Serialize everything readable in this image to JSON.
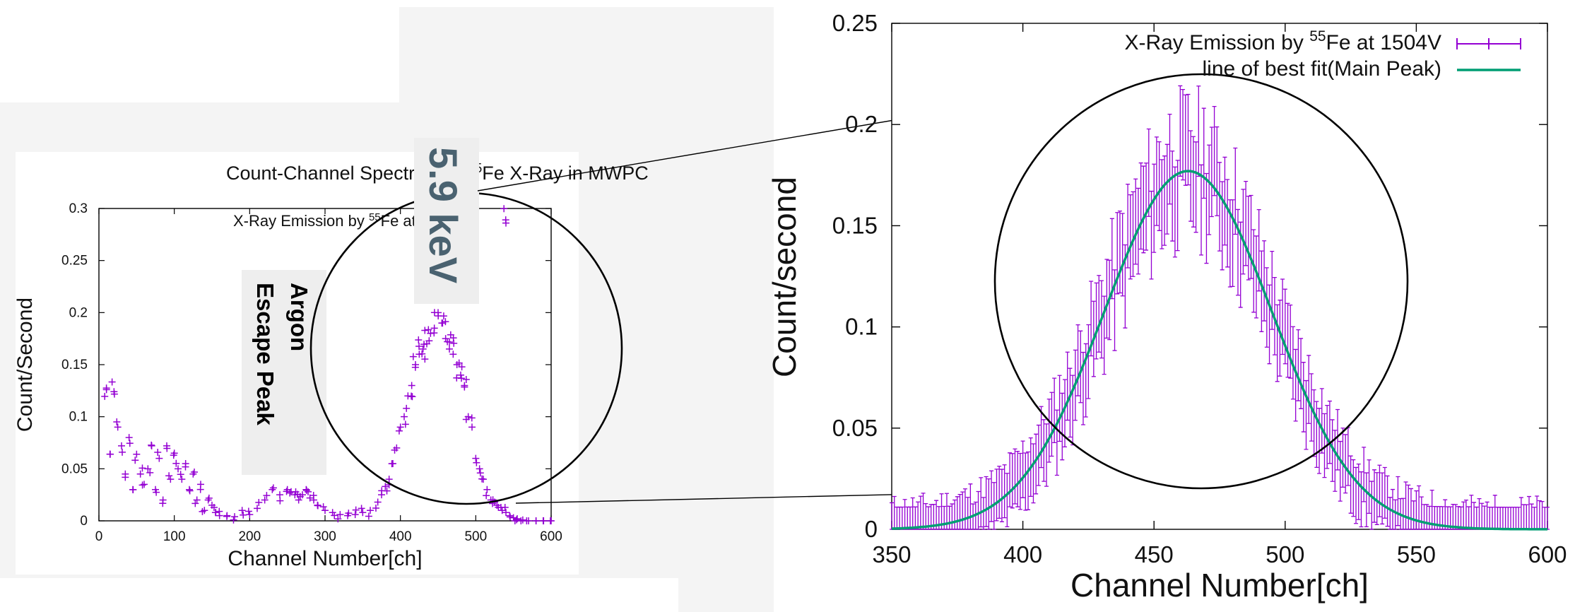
{
  "colors": {
    "data": "#9400D3",
    "fit": "#009E73",
    "annotation_text": "#4a6270",
    "panel_bg": "#f4f4f4"
  },
  "chart_data": [
    {
      "type": "scatter",
      "title": "Count-Channel Spectrum of ",
      "title_sup": "55",
      "title_suffix": "Fe X-Ray in MWPC",
      "xlabel": "Channel Number[ch]",
      "ylabel": "Count/Second",
      "xlim": [
        0,
        600
      ],
      "ylim": [
        0,
        0.3
      ],
      "xticks": [
        0,
        100,
        200,
        300,
        400,
        500,
        600
      ],
      "yticks": [
        0,
        0.05,
        0.1,
        0.15,
        0.2,
        0.25,
        0.3
      ],
      "legend": {
        "text": "X-Ray Emission by ",
        "sup": "55",
        "suffix": "Fe at",
        "position": "top-center"
      },
      "series": [
        {
          "marker": "+",
          "x": [
            10,
            15,
            20,
            25,
            30,
            35,
            40,
            45,
            50,
            55,
            60,
            65,
            70,
            75,
            80,
            85,
            90,
            95,
            100,
            105,
            110,
            115,
            120,
            125,
            130,
            135,
            140,
            145,
            150,
            155,
            160,
            170,
            180,
            190,
            200,
            210,
            220,
            230,
            240,
            250,
            255,
            260,
            265,
            270,
            275,
            280,
            285,
            290,
            300,
            310,
            320,
            330,
            340,
            350,
            360,
            370,
            375,
            380,
            385,
            390,
            395,
            400,
            405,
            410,
            415,
            420,
            425,
            430,
            435,
            440,
            445,
            450,
            455,
            460,
            465,
            470,
            475,
            480,
            485,
            490,
            495,
            500,
            505,
            510,
            515,
            520,
            525,
            530,
            535,
            540,
            545,
            550,
            555,
            560,
            570,
            580,
            590,
            600
          ],
          "y": [
            0.126,
            0.064,
            0.124,
            0.09,
            0.072,
            0.045,
            0.08,
            0.03,
            0.064,
            0.045,
            0.035,
            0.05,
            0.072,
            0.03,
            0.06,
            0.02,
            0.072,
            0.04,
            0.065,
            0.05,
            0.04,
            0.055,
            0.03,
            0.045,
            0.02,
            0.035,
            0.01,
            0.02,
            0.015,
            0.008,
            0.005,
            0.005,
            0.004,
            0.01,
            0.006,
            0.012,
            0.02,
            0.03,
            0.025,
            0.03,
            0.028,
            0.025,
            0.02,
            0.025,
            0.03,
            0.022,
            0.02,
            0.015,
            0.01,
            0.008,
            0.006,
            0.005,
            0.006,
            0.008,
            0.01,
            0.018,
            0.025,
            0.033,
            0.04,
            0.055,
            0.07,
            0.09,
            0.1,
            0.12,
            0.13,
            0.15,
            0.16,
            0.165,
            0.17,
            0.18,
            0.185,
            0.2,
            0.19,
            0.175,
            0.165,
            0.16,
            0.15,
            0.14,
            0.13,
            0.1,
            0.09,
            0.06,
            0.05,
            0.04,
            0.03,
            0.02,
            0.018,
            0.013,
            0.01,
            0.008,
            0.005,
            0.003,
            0.002,
            0.0,
            0.0,
            0.0,
            0.0,
            0.0
          ],
          "outliers": [
            {
              "x": 540,
              "y": 0.286
            }
          ]
        }
      ],
      "annotations": [
        {
          "text_lines": [
            "Argon",
            "Escape Peak"
          ],
          "orientation": "rotated-90-cw"
        },
        {
          "text": "5.9 keV",
          "orientation": "rotated-90-cw"
        }
      ],
      "highlight_circle": "around main peak (channels ~300–560)"
    },
    {
      "type": "scatter",
      "title": "",
      "xlabel": "Channel Number[ch]",
      "ylabel": "Count/second",
      "xlim": [
        350,
        600
      ],
      "ylim": [
        0,
        0.25
      ],
      "xticks": [
        350,
        400,
        450,
        500,
        550,
        600
      ],
      "yticks": [
        0,
        0.05,
        0.1,
        0.15,
        0.2,
        0.25
      ],
      "legend_position": "top-right",
      "legend": [
        {
          "text": "X-Ray Emission by ",
          "sup": "55",
          "suffix": "Fe at 1504V",
          "style": "errorbar"
        },
        {
          "text": "line of best fit(Main Peak)",
          "style": "line"
        }
      ],
      "series": [
        {
          "name": "X-Ray Emission by 55Fe at 1504V",
          "type": "errorbar",
          "x_range": [
            350,
            600
          ],
          "step": 1,
          "error": 0.022,
          "peak": 0.178,
          "mean": 463,
          "sigma": 32
        },
        {
          "name": "line of best fit(Main Peak)",
          "type": "line",
          "function": "gaussian",
          "amplitude": 0.177,
          "mean": 463,
          "sigma": 32
        }
      ],
      "highlight_circle": "around main peak"
    }
  ],
  "fit_curve": {
    "amplitude": 0.177,
    "mean": 463,
    "sigma": 32,
    "sample_x": [
      350,
      360,
      370,
      380,
      390,
      400,
      410,
      420,
      430,
      440,
      450,
      460,
      470,
      480,
      490,
      500,
      510,
      520,
      530,
      540,
      550,
      560,
      570,
      580,
      590,
      600
    ]
  }
}
